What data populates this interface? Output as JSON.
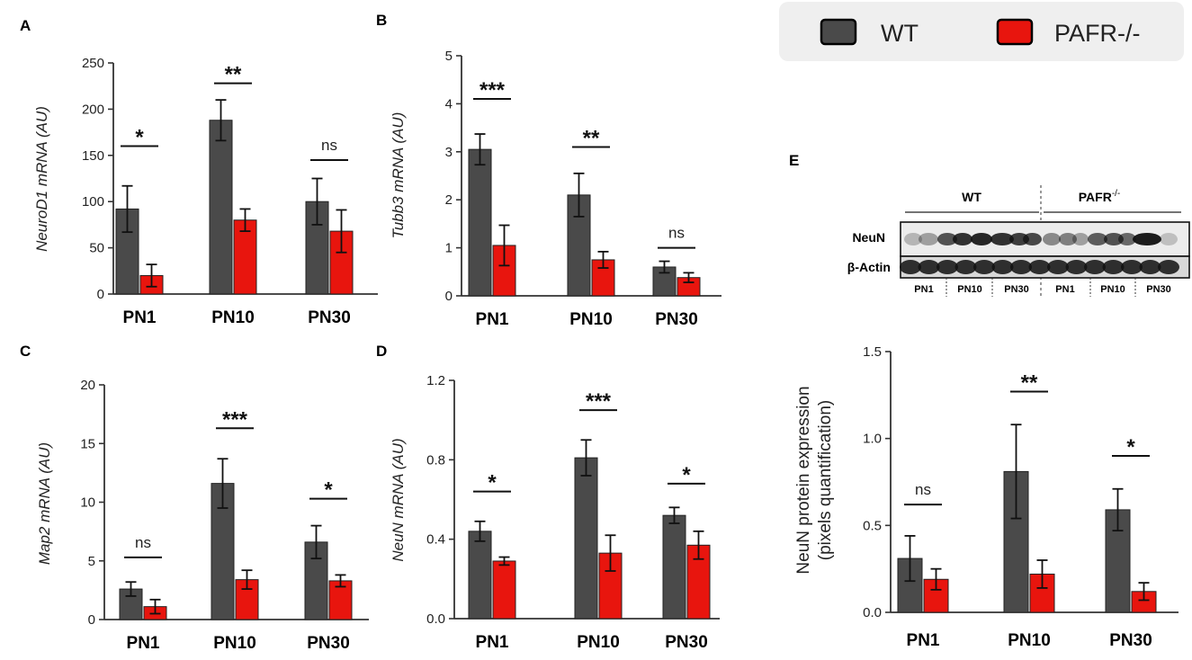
{
  "colors": {
    "wt": "#4a4a4a",
    "pafr": "#e8150e",
    "axis": "#333333",
    "legend_bg": "#efefef"
  },
  "legend": {
    "items": [
      {
        "label": "WT",
        "color": "#4a4a4a"
      },
      {
        "label": "PAFR-/-",
        "color": "#e8150e"
      }
    ]
  },
  "blot": {
    "letter": "E",
    "groups": [
      {
        "label": "WT"
      },
      {
        "label": "PAFR",
        "sup": "-/-"
      }
    ],
    "rows": [
      "NeuN",
      "β-Actin"
    ],
    "lanes": [
      "PN1",
      "PN10",
      "PN30",
      "PN1",
      "PN10",
      "PN30"
    ]
  },
  "chart_data": [
    {
      "id": "A",
      "letter": "A",
      "type": "bar",
      "categories": [
        "PN1",
        "PN10",
        "PN30"
      ],
      "ylabel": "NeuroD1 mRNA (AU)",
      "ylim": [
        0,
        250
      ],
      "yticks": [
        0,
        50,
        100,
        150,
        200,
        250
      ],
      "yticklabels": [
        "0",
        "50",
        "100",
        "150",
        "200",
        "250"
      ],
      "series": [
        {
          "name": "WT",
          "values": [
            92,
            188,
            100
          ],
          "errors": [
            25,
            22,
            25
          ]
        },
        {
          "name": "PAFR-/-",
          "values": [
            20,
            80,
            68
          ],
          "errors": [
            12,
            12,
            23
          ]
        }
      ],
      "significance": [
        "*",
        "**",
        "ns"
      ],
      "sig_levels": [
        160,
        228,
        145
      ]
    },
    {
      "id": "B",
      "letter": "B",
      "type": "bar",
      "categories": [
        "PN1",
        "PN10",
        "PN30"
      ],
      "ylabel": "Tubb3 mRNA (AU)",
      "ylim": [
        0,
        5
      ],
      "yticks": [
        0,
        1,
        2,
        3,
        4,
        5
      ],
      "yticklabels": [
        "0",
        "1",
        "2",
        "3",
        "4",
        "5"
      ],
      "series": [
        {
          "name": "WT",
          "values": [
            3.05,
            2.1,
            0.6
          ],
          "errors": [
            0.32,
            0.45,
            0.12
          ]
        },
        {
          "name": "PAFR-/-",
          "values": [
            1.05,
            0.75,
            0.38
          ],
          "errors": [
            0.42,
            0.17,
            0.1
          ]
        }
      ],
      "significance": [
        "***",
        "**",
        "ns"
      ],
      "sig_levels": [
        4.1,
        3.1,
        1.0
      ]
    },
    {
      "id": "C",
      "letter": "C",
      "type": "bar",
      "categories": [
        "PN1",
        "PN10",
        "PN30"
      ],
      "ylabel": "Map2 mRNA (AU)",
      "ylim": [
        0,
        20
      ],
      "yticks": [
        0,
        5,
        10,
        15,
        20
      ],
      "yticklabels": [
        "0",
        "5",
        "10",
        "15",
        "20"
      ],
      "series": [
        {
          "name": "WT",
          "values": [
            2.6,
            11.6,
            6.6
          ],
          "errors": [
            0.6,
            2.1,
            1.4
          ]
        },
        {
          "name": "PAFR-/-",
          "values": [
            1.1,
            3.4,
            3.3
          ],
          "errors": [
            0.6,
            0.8,
            0.5
          ]
        }
      ],
      "significance": [
        "ns",
        "***",
        "*"
      ],
      "sig_levels": [
        5.3,
        16.3,
        10.3
      ]
    },
    {
      "id": "D",
      "letter": "D",
      "type": "bar",
      "categories": [
        "PN1",
        "PN10",
        "PN30"
      ],
      "ylabel": "NeuN mRNA (AU)",
      "ylim": [
        0,
        1.2
      ],
      "yticks": [
        0,
        0.4,
        0.8,
        1.2
      ],
      "yticklabels": [
        "0.0",
        "0.4",
        "0.8",
        "1.2"
      ],
      "series": [
        {
          "name": "WT",
          "values": [
            0.44,
            0.81,
            0.52
          ],
          "errors": [
            0.05,
            0.09,
            0.04
          ]
        },
        {
          "name": "PAFR-/-",
          "values": [
            0.29,
            0.33,
            0.37
          ],
          "errors": [
            0.02,
            0.09,
            0.07
          ]
        }
      ],
      "significance": [
        "*",
        "***",
        "*"
      ],
      "sig_levels": [
        0.64,
        1.05,
        0.68
      ]
    },
    {
      "id": "E",
      "letter": "",
      "type": "bar",
      "categories": [
        "PN1",
        "PN10",
        "PN30"
      ],
      "ylabel": "NeuN protein expression",
      "ylabel2": "(pixels quantification)",
      "ylim": [
        0,
        1.5
      ],
      "yticks": [
        0,
        0.5,
        1.0,
        1.5
      ],
      "yticklabels": [
        "0.0",
        "0.5",
        "1.0",
        "1.5"
      ],
      "series": [
        {
          "name": "WT",
          "values": [
            0.31,
            0.81,
            0.59
          ],
          "errors": [
            0.13,
            0.27,
            0.12
          ]
        },
        {
          "name": "PAFR-/-",
          "values": [
            0.19,
            0.22,
            0.12
          ],
          "errors": [
            0.06,
            0.08,
            0.05
          ]
        }
      ],
      "significance": [
        "ns",
        "**",
        "*"
      ],
      "sig_levels": [
        0.62,
        1.27,
        0.9
      ]
    }
  ]
}
